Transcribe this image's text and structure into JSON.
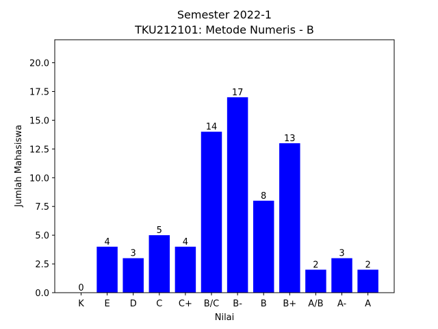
{
  "chart_data": {
    "type": "bar",
    "title": "Semester 2022-1",
    "subtitle": "TKU212101: Metode Numeris - B",
    "xlabel": "Nilai",
    "ylabel": "Jumlah Mahasiswa",
    "categories": [
      "K",
      "E",
      "D",
      "C",
      "C+",
      "B/C",
      "B-",
      "B",
      "B+",
      "A/B",
      "A-",
      "A"
    ],
    "values": [
      0,
      4,
      3,
      5,
      4,
      14,
      17,
      8,
      13,
      2,
      3,
      2
    ],
    "ylim": [
      0,
      22
    ],
    "yticks": [
      "0.0",
      "2.5",
      "5.0",
      "7.5",
      "10.0",
      "12.5",
      "15.0",
      "17.5",
      "20.0"
    ],
    "bar_color": "#0000ff",
    "grid": false,
    "legend": false
  }
}
